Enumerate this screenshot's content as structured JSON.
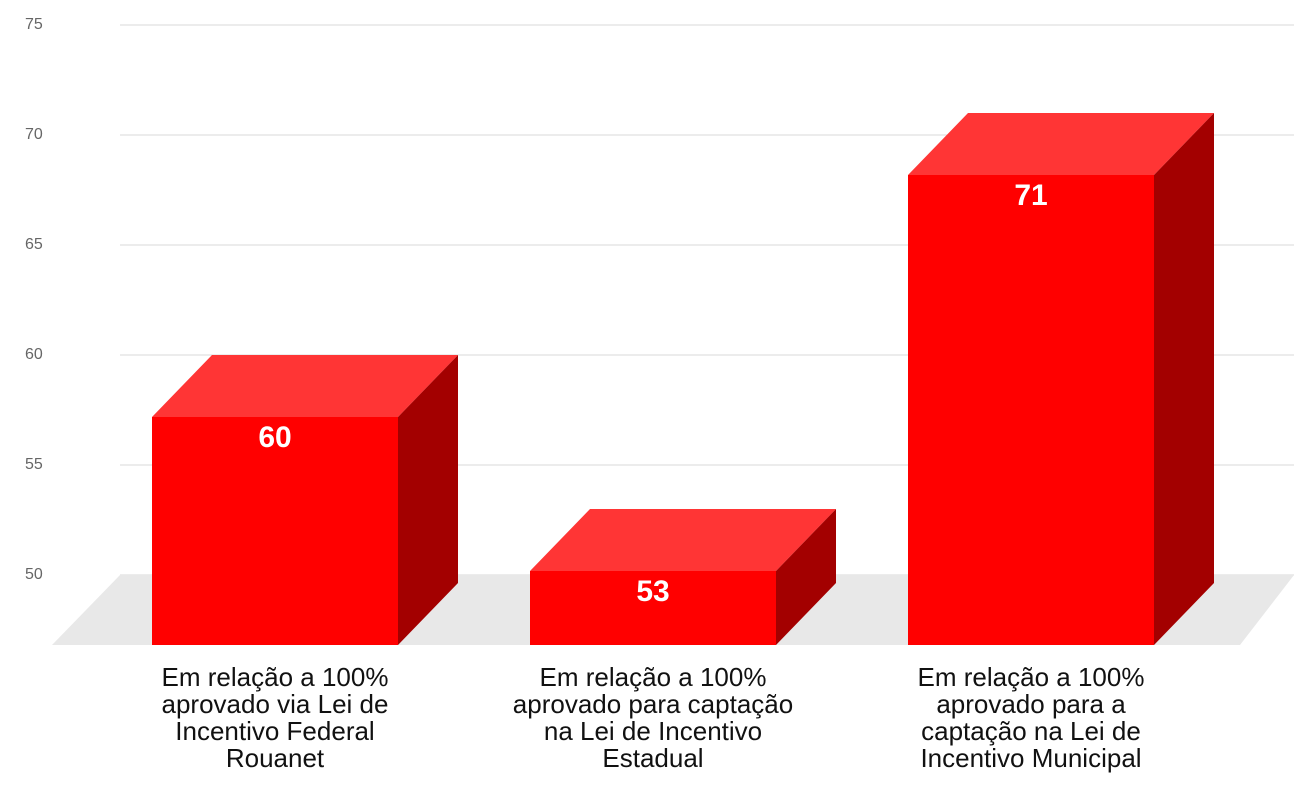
{
  "chart_data": {
    "type": "bar3d",
    "categories": [
      "Em relação a 100% aprovado via Lei de Incentivo Federal Rouanet",
      "Em relação a 100% aprovado para captação na Lei de Incentivo Estadual",
      "Em relação a 100% aprovado para a captação na Lei de Incentivo Municipal"
    ],
    "values": [
      60,
      53,
      71
    ],
    "color": "#ff0000",
    "ylim": [
      50,
      75
    ],
    "yticks": [
      50,
      55,
      60,
      65,
      70,
      75
    ],
    "grid": true
  }
}
